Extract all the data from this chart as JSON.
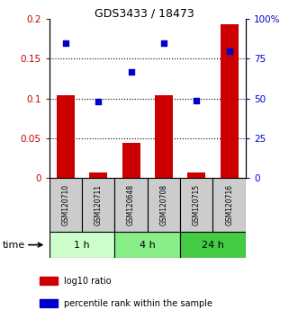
{
  "title": "GDS3433 / 18473",
  "samples": [
    "GSM120710",
    "GSM120711",
    "GSM120648",
    "GSM120708",
    "GSM120715",
    "GSM120716"
  ],
  "log10_ratio": [
    0.104,
    0.007,
    0.044,
    0.104,
    0.007,
    0.193
  ],
  "percentile_rank": [
    85,
    48,
    67,
    85,
    49,
    80
  ],
  "ylim_left": [
    0,
    0.2
  ],
  "ylim_right": [
    0,
    100
  ],
  "yticks_left": [
    0,
    0.05,
    0.1,
    0.15,
    0.2
  ],
  "yticks_right": [
    0,
    25,
    50,
    75,
    100
  ],
  "ytick_labels_left": [
    "0",
    "0.05",
    "0.1",
    "0.15",
    "0.2"
  ],
  "ytick_labels_right": [
    "0",
    "25",
    "50",
    "75",
    "100%"
  ],
  "bar_color": "#cc0000",
  "dot_color": "#0000cc",
  "time_groups": [
    {
      "label": "1 h",
      "start": 0,
      "end": 2,
      "color": "#ccffcc"
    },
    {
      "label": "4 h",
      "start": 2,
      "end": 4,
      "color": "#88ee88"
    },
    {
      "label": "24 h",
      "start": 4,
      "end": 6,
      "color": "#44cc44"
    }
  ],
  "legend_labels": [
    "log10 ratio",
    "percentile rank within the sample"
  ],
  "bar_width": 0.55,
  "sample_box_color": "#cccccc",
  "dotted_grid_vals": [
    0.05,
    0.1,
    0.15
  ]
}
